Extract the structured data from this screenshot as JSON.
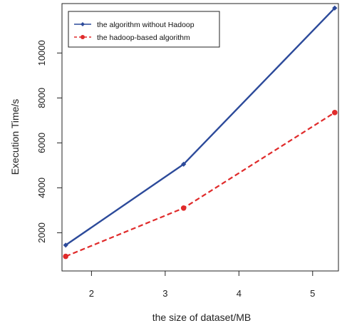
{
  "chart_data": {
    "type": "line",
    "xlabel": "the size of dataset/MB",
    "ylabel": "Execution Time/s",
    "xlim": [
      1.6,
      5.35
    ],
    "ylim": [
      300,
      12200
    ],
    "x_ticks": [
      2,
      3,
      4,
      5
    ],
    "y_ticks": [
      2000,
      4000,
      6000,
      8000,
      10000
    ],
    "grid": false,
    "legend_position": "top-left",
    "series": [
      {
        "name": "the algorithm without Hadoop",
        "color": "#2c4a9a",
        "line_style": "solid",
        "marker": "diamond",
        "x": [
          1.65,
          3.25,
          5.3
        ],
        "y": [
          1450,
          5050,
          12000
        ]
      },
      {
        "name": "the hadoop-based algorithm",
        "color": "#e02b2b",
        "line_style": "dashed",
        "marker": "circle",
        "x": [
          1.65,
          3.25,
          5.3
        ],
        "y": [
          950,
          3100,
          7350
        ]
      }
    ]
  }
}
